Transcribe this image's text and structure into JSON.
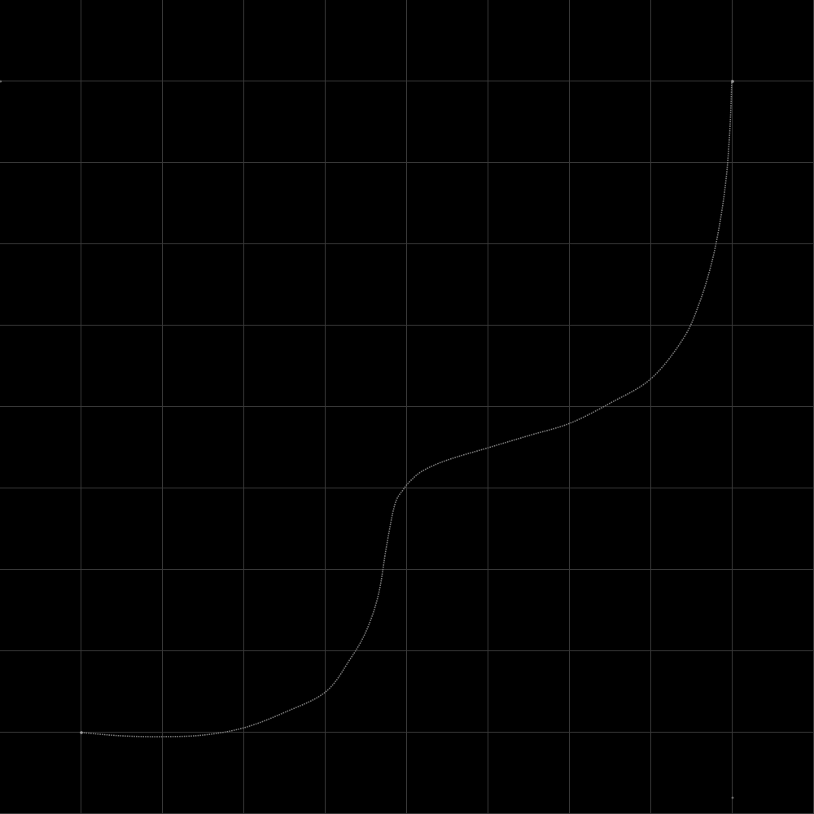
{
  "chart_data": {
    "type": "line",
    "title": "",
    "xlabel": "",
    "ylabel": "",
    "xlim": [
      0,
      10
    ],
    "ylim": [
      0,
      10
    ],
    "grid": true,
    "gridline_color": "#3a3a3a",
    "background_color": "#000000",
    "series": [
      {
        "color": "#7d7d7d",
        "points": [
          [
            1.0,
            1.0
          ],
          [
            1.5,
            0.96
          ],
          [
            2.0,
            0.95
          ],
          [
            2.5,
            0.97
          ],
          [
            3.0,
            1.06
          ],
          [
            3.5,
            1.25
          ],
          [
            4.0,
            1.5
          ],
          [
            4.3,
            1.9
          ],
          [
            4.5,
            2.25
          ],
          [
            4.65,
            2.7
          ],
          [
            4.75,
            3.3
          ],
          [
            4.85,
            3.8
          ],
          [
            4.95,
            3.98
          ],
          [
            5.05,
            4.1
          ],
          [
            5.2,
            4.22
          ],
          [
            5.5,
            4.35
          ],
          [
            6.0,
            4.5
          ],
          [
            6.5,
            4.65
          ],
          [
            7.0,
            4.8
          ],
          [
            7.5,
            5.05
          ],
          [
            8.0,
            5.35
          ],
          [
            8.4,
            5.85
          ],
          [
            8.6,
            6.3
          ],
          [
            8.75,
            6.8
          ],
          [
            8.85,
            7.3
          ],
          [
            8.92,
            7.8
          ],
          [
            8.96,
            8.3
          ],
          [
            8.98,
            8.7
          ],
          [
            8.99,
            9.0
          ],
          [
            9.0,
            9.0
          ]
        ]
      }
    ]
  }
}
